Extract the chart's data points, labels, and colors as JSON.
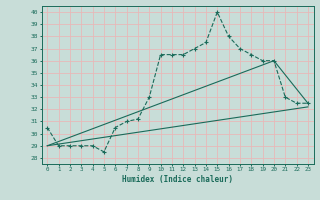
{
  "xlabel": "Humidex (Indice chaleur)",
  "ylabel": "",
  "bg_color": "#c8ddd8",
  "grid_color": "#e8b8b8",
  "line_color": "#1a6b5a",
  "xlim": [
    -0.5,
    23.5
  ],
  "ylim": [
    27.5,
    40.5
  ],
  "xticks": [
    0,
    1,
    2,
    3,
    4,
    5,
    6,
    7,
    8,
    9,
    10,
    11,
    12,
    13,
    14,
    15,
    16,
    17,
    18,
    19,
    20,
    21,
    22,
    23
  ],
  "yticks": [
    28,
    29,
    30,
    31,
    32,
    33,
    34,
    35,
    36,
    37,
    38,
    39,
    40
  ],
  "line1_x": [
    0,
    1,
    2,
    3,
    4,
    5,
    6,
    7,
    8,
    9,
    10,
    11,
    12,
    13,
    14,
    15,
    16,
    17,
    18,
    19,
    20,
    21,
    22,
    23
  ],
  "line1_y": [
    30.5,
    29.0,
    29.0,
    29.0,
    29.0,
    28.5,
    30.5,
    31.0,
    31.2,
    33.0,
    36.5,
    36.5,
    36.5,
    37.0,
    37.5,
    40.0,
    38.0,
    37.0,
    36.5,
    36.0,
    36.0,
    33.0,
    32.5,
    32.5
  ],
  "line2_x": [
    0,
    23
  ],
  "line2_y": [
    29.0,
    32.2
  ],
  "line3_x": [
    0,
    20,
    23
  ],
  "line3_y": [
    29.0,
    36.0,
    32.5
  ]
}
